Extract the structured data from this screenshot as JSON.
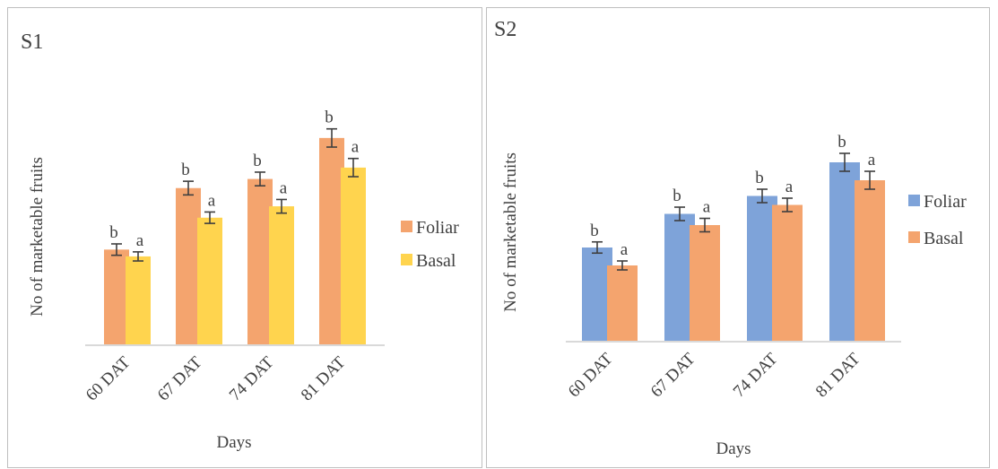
{
  "chart_data": [
    {
      "type": "bar",
      "title": "S1",
      "xlabel": "Days",
      "ylabel": "No of marketable fruits",
      "categories": [
        "60 DAT",
        "67 DAT",
        "74 DAT",
        "81 DAT"
      ],
      "ylim": [
        0,
        1
      ],
      "series": [
        {
          "name": "Foliar",
          "color": "#F4A46E",
          "values": [
            0.42,
            0.69,
            0.73,
            0.91
          ],
          "error": [
            0.025,
            0.03,
            0.03,
            0.04
          ],
          "labels": [
            "b",
            "b",
            "b",
            "b"
          ]
        },
        {
          "name": "Basal",
          "color": "#FFD44E",
          "values": [
            0.39,
            0.56,
            0.61,
            0.78
          ],
          "error": [
            0.02,
            0.025,
            0.03,
            0.04
          ],
          "labels": [
            "a",
            "a",
            "a",
            "a"
          ]
        }
      ],
      "legend": "right",
      "grid": false
    },
    {
      "type": "bar",
      "title": "S2",
      "xlabel": "Days",
      "ylabel": "No of marketable fruits",
      "categories": [
        "60 DAT",
        "67 DAT",
        "74 DAT",
        "81 DAT"
      ],
      "ylim": [
        0,
        1
      ],
      "series": [
        {
          "name": "Foliar",
          "color": "#7EA3D9",
          "values": [
            0.42,
            0.57,
            0.65,
            0.8
          ],
          "error": [
            0.025,
            0.03,
            0.03,
            0.04
          ],
          "labels": [
            "b",
            "b",
            "b",
            "b"
          ]
        },
        {
          "name": "Basal",
          "color": "#F4A46E",
          "values": [
            0.34,
            0.52,
            0.61,
            0.72
          ],
          "error": [
            0.02,
            0.03,
            0.03,
            0.04
          ],
          "labels": [
            "a",
            "a",
            "a",
            "a"
          ]
        }
      ],
      "legend": "right",
      "grid": false
    }
  ]
}
